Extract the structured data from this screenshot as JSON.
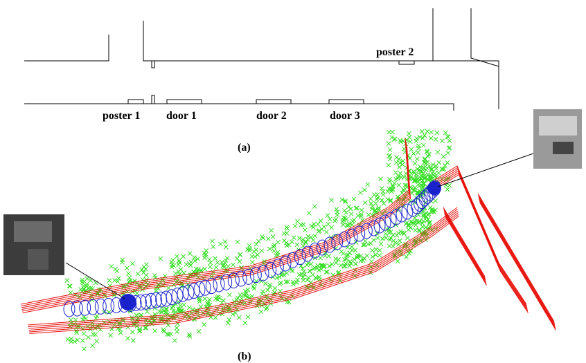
{
  "floor_plan": {
    "labels": [
      "poster 1",
      "door 1",
      "door 2",
      "door 3",
      "poster 2"
    ],
    "caption": "(a)"
  },
  "map": {
    "caption": "(b)"
  }
}
